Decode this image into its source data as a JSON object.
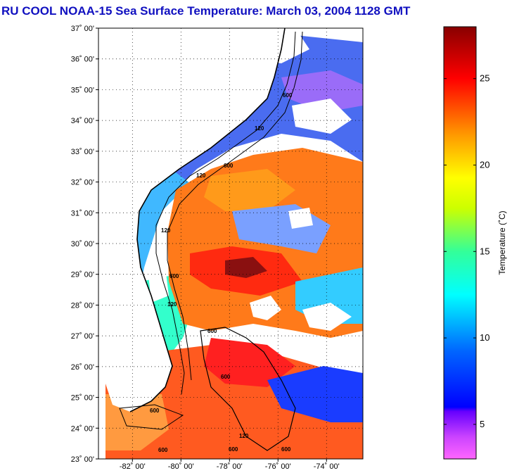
{
  "title": "RU COOL  NOAA-15  Sea Surface Temperature:  March 03, 2004 1128 GMT",
  "map": {
    "lat_labels": [
      "37˚ 00'",
      "36˚ 00'",
      "35˚ 00'",
      "34˚ 00'",
      "33˚ 00'",
      "32˚ 00'",
      "31˚ 00'",
      "30˚ 00'",
      "29˚ 00'",
      "28˚ 00'",
      "27˚ 00'",
      "26˚ 00'",
      "25˚ 00'",
      "24˚ 00'",
      "23˚ 00'"
    ],
    "lon_labels": [
      "-82˚ 00'",
      "-80˚ 00'",
      "-78˚ 00'",
      "-76˚ 00'",
      "-74˚ 00'"
    ],
    "lat_range": [
      23,
      37
    ],
    "lon_range": [
      -83.4,
      -72.5
    ],
    "isobath_labels": [
      "600",
      "600",
      "120",
      "120",
      "600",
      "120",
      "120",
      "600",
      "600",
      "600",
      "600",
      "600",
      "120",
      "600"
    ]
  },
  "colorbar": {
    "label": "Temperature (˚C)",
    "ticks": [
      "5",
      "10",
      "15",
      "20",
      "25"
    ],
    "tick_values": [
      5,
      10,
      15,
      20,
      25
    ],
    "range": [
      3,
      28
    ],
    "colors": [
      "#ff66ff",
      "#cc33ff",
      "#3300ff",
      "#0066ff",
      "#00ffff",
      "#66ff66",
      "#ffff00",
      "#ff9900",
      "#ff0000",
      "#990000"
    ]
  }
}
